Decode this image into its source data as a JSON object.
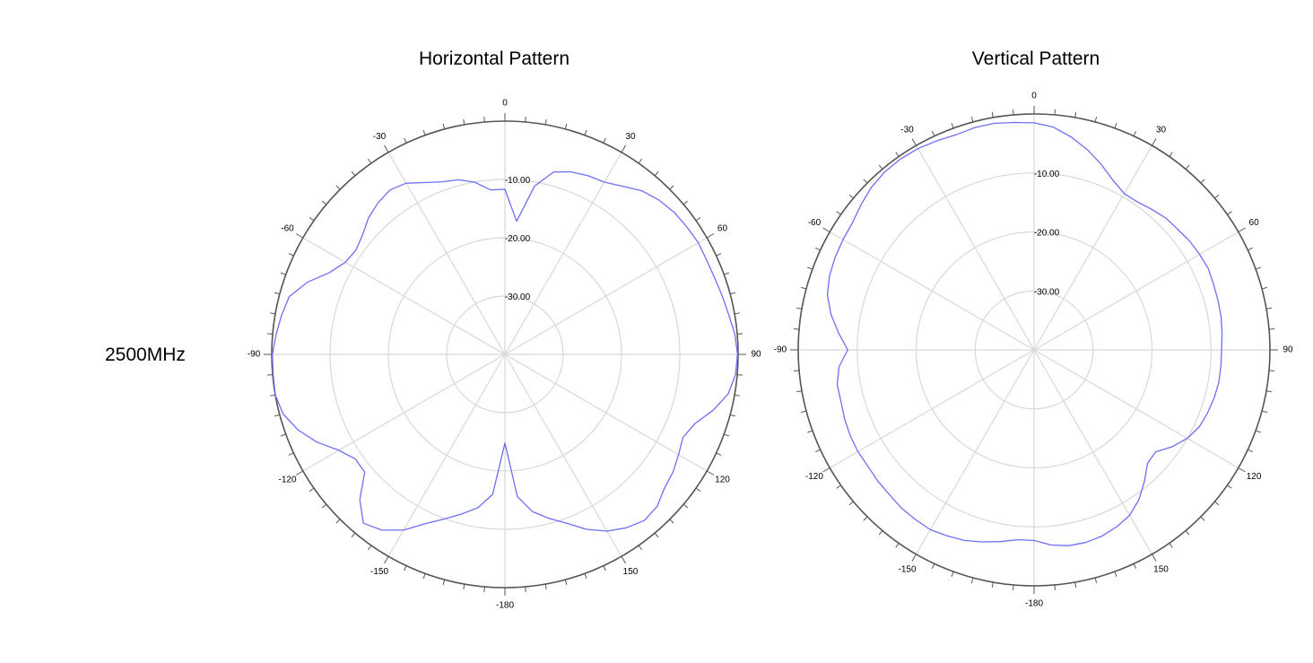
{
  "row_label": "2500MHz",
  "colors": {
    "trace": "#6e6ef5",
    "grid": "#d8d8d8",
    "axis": "#555555"
  },
  "chart_data": [
    {
      "type": "polar-line",
      "title": "Horizontal Pattern",
      "r_unit": "dB",
      "r_range": [
        -40,
        0
      ],
      "r_ticks": [
        {
          "value": -10,
          "label": "-10.00"
        },
        {
          "value": -20,
          "label": "-20.00"
        },
        {
          "value": -30,
          "label": "-30.00"
        }
      ],
      "angle_labels": [
        "0",
        "30",
        "60",
        "90",
        "120",
        "150",
        "-180",
        "-150",
        "-120",
        "-90",
        "-60",
        "-30"
      ],
      "angle_values": [
        0,
        30,
        60,
        90,
        120,
        150,
        180,
        -150,
        -120,
        -90,
        -60,
        -30
      ],
      "series": [
        {
          "angles": [
            0,
            5,
            10,
            15,
            20,
            25,
            30,
            35,
            40,
            45,
            50,
            55,
            60,
            65,
            70,
            75,
            80,
            85,
            90,
            95,
            100,
            105,
            110,
            115,
            120,
            125,
            130,
            135,
            140,
            145,
            150,
            155,
            160,
            165,
            170,
            175,
            180,
            185,
            190,
            195,
            200,
            205,
            210,
            215,
            220,
            225,
            230,
            235,
            240,
            245,
            250,
            255,
            260,
            265,
            270,
            275,
            280,
            285,
            290,
            295,
            300,
            305,
            310,
            315,
            320,
            325,
            330,
            335,
            340,
            345,
            350,
            355,
            360
          ],
          "values": [
            -11.7,
            -17.1,
            -10.7,
            -7.6,
            -6.7,
            -6.2,
            -5.9,
            -4.8,
            -3.4,
            -2.6,
            -2.1,
            -1.9,
            -1.7,
            -1.8,
            -1.7,
            -1.4,
            -1.0,
            -0.4,
            -0.1,
            -0.3,
            -1.1,
            -3.0,
            -5.3,
            -6.3,
            -5.6,
            -4.8,
            -4.3,
            -3.1,
            -2.8,
            -3.7,
            -5.0,
            -6.9,
            -9.2,
            -10.9,
            -12.6,
            -15.5,
            -24.8,
            -15.9,
            -13.3,
            -11.7,
            -10.0,
            -8.0,
            -5.2,
            -3.2,
            -2.2,
            -4.8,
            -8.6,
            -8.7,
            -7.1,
            -4.4,
            -2.2,
            -0.6,
            0.0,
            -0.1,
            -0.1,
            -0.6,
            -1.1,
            -1.7,
            -3.9,
            -6.8,
            -8.4,
            -8.8,
            -8.1,
            -6.9,
            -6.1,
            -5.6,
            -6.1,
            -7.5,
            -8.5,
            -9.0,
            -10.0,
            -11.7,
            -11.7
          ]
        }
      ]
    },
    {
      "type": "polar-line",
      "title": "Vertical Pattern",
      "r_unit": "dB",
      "r_range": [
        -40,
        0
      ],
      "r_ticks": [
        {
          "value": -10,
          "label": "-10.00"
        },
        {
          "value": -20,
          "label": "-20.00"
        },
        {
          "value": -30,
          "label": "-30.00"
        }
      ],
      "angle_labels": [
        "0",
        "30",
        "60",
        "90",
        "120",
        "150",
        "-180",
        "-150",
        "-120",
        "-90",
        "-60",
        "-30"
      ],
      "angle_values": [
        0,
        30,
        60,
        90,
        120,
        150,
        180,
        -150,
        -120,
        -90,
        -60,
        -30
      ],
      "series": [
        {
          "angles": [
            0,
            5,
            10,
            15,
            20,
            25,
            30,
            35,
            40,
            45,
            50,
            55,
            60,
            65,
            70,
            75,
            80,
            85,
            90,
            95,
            100,
            105,
            110,
            115,
            120,
            125,
            130,
            135,
            140,
            145,
            150,
            155,
            160,
            165,
            170,
            175,
            180,
            185,
            190,
            195,
            200,
            205,
            210,
            215,
            220,
            225,
            230,
            235,
            240,
            245,
            250,
            255,
            260,
            265,
            270,
            275,
            280,
            285,
            290,
            295,
            300,
            305,
            310,
            315,
            320,
            325,
            330,
            335,
            340,
            345,
            350,
            355,
            360
          ],
          "values": [
            -1.5,
            -2.1,
            -3.4,
            -4.9,
            -6.6,
            -8.3,
            -9.4,
            -9.4,
            -8.9,
            -8.4,
            -8.2,
            -7.8,
            -7.6,
            -7.4,
            -7.6,
            -7.7,
            -7.8,
            -8.0,
            -8.2,
            -8.2,
            -8.2,
            -8.4,
            -8.7,
            -9.1,
            -10.0,
            -11.4,
            -13.1,
            -12.8,
            -10.9,
            -9.0,
            -7.6,
            -6.9,
            -6.4,
            -6.2,
            -6.3,
            -6.8,
            -7.7,
            -7.7,
            -7.0,
            -6.3,
            -5.6,
            -5.2,
            -4.8,
            -4.9,
            -5.0,
            -5.3,
            -5.4,
            -5.6,
            -5.5,
            -5.6,
            -5.8,
            -6.1,
            -6.1,
            -6.8,
            -8.4,
            -6.7,
            -5.0,
            -3.7,
            -3.1,
            -2.8,
            -2.6,
            -2.4,
            -1.7,
            -1.0,
            -0.6,
            -0.5,
            -0.6,
            -0.9,
            -1.2,
            -1.0,
            -1.0,
            -1.3,
            -1.5
          ]
        }
      ]
    }
  ]
}
